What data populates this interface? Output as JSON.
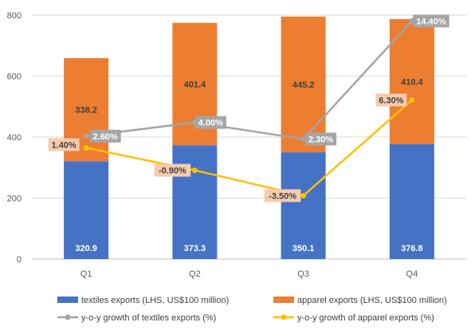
{
  "chart_data": {
    "type": "bar",
    "stacked": true,
    "title": "",
    "categories": [
      "Q1",
      "Q2",
      "Q3",
      "Q4"
    ],
    "ylim": [
      0,
      800
    ],
    "yticks": [
      "0",
      "200",
      "400",
      "600",
      "800"
    ],
    "grid": true,
    "legend_position": "bottom",
    "series": [
      {
        "name": "textiles exports (LHS, US$100 million)",
        "kind": "bar",
        "color": "#4472c4",
        "values": [
          320.9,
          373.3,
          350.1,
          376.8
        ],
        "labels": [
          "320.9",
          "373.3",
          "350.1",
          "376.8"
        ]
      },
      {
        "name": "apparel exports (LHS, US$100 million)",
        "kind": "bar",
        "color": "#ed7d31",
        "values": [
          338.2,
          401.4,
          445.2,
          410.4
        ],
        "labels": [
          "338.2",
          "401.4",
          "445.2",
          "410.4"
        ]
      },
      {
        "name": "y-o-y growth of textiles exports (%)",
        "kind": "line",
        "color": "#a5a5a5",
        "values": [
          2.6,
          4.0,
          2.3,
          14.4
        ],
        "labels": [
          "2.60%",
          "4.00%",
          "2.30%",
          "14.40%"
        ]
      },
      {
        "name": "y-o-y growth of apparel exports (%)",
        "kind": "line",
        "color": "#ffc000",
        "values": [
          1.4,
          -0.9,
          -3.5,
          6.3
        ],
        "labels": [
          "1.40%",
          "-0.90%",
          "-3.50%",
          "6.30%"
        ]
      }
    ]
  }
}
